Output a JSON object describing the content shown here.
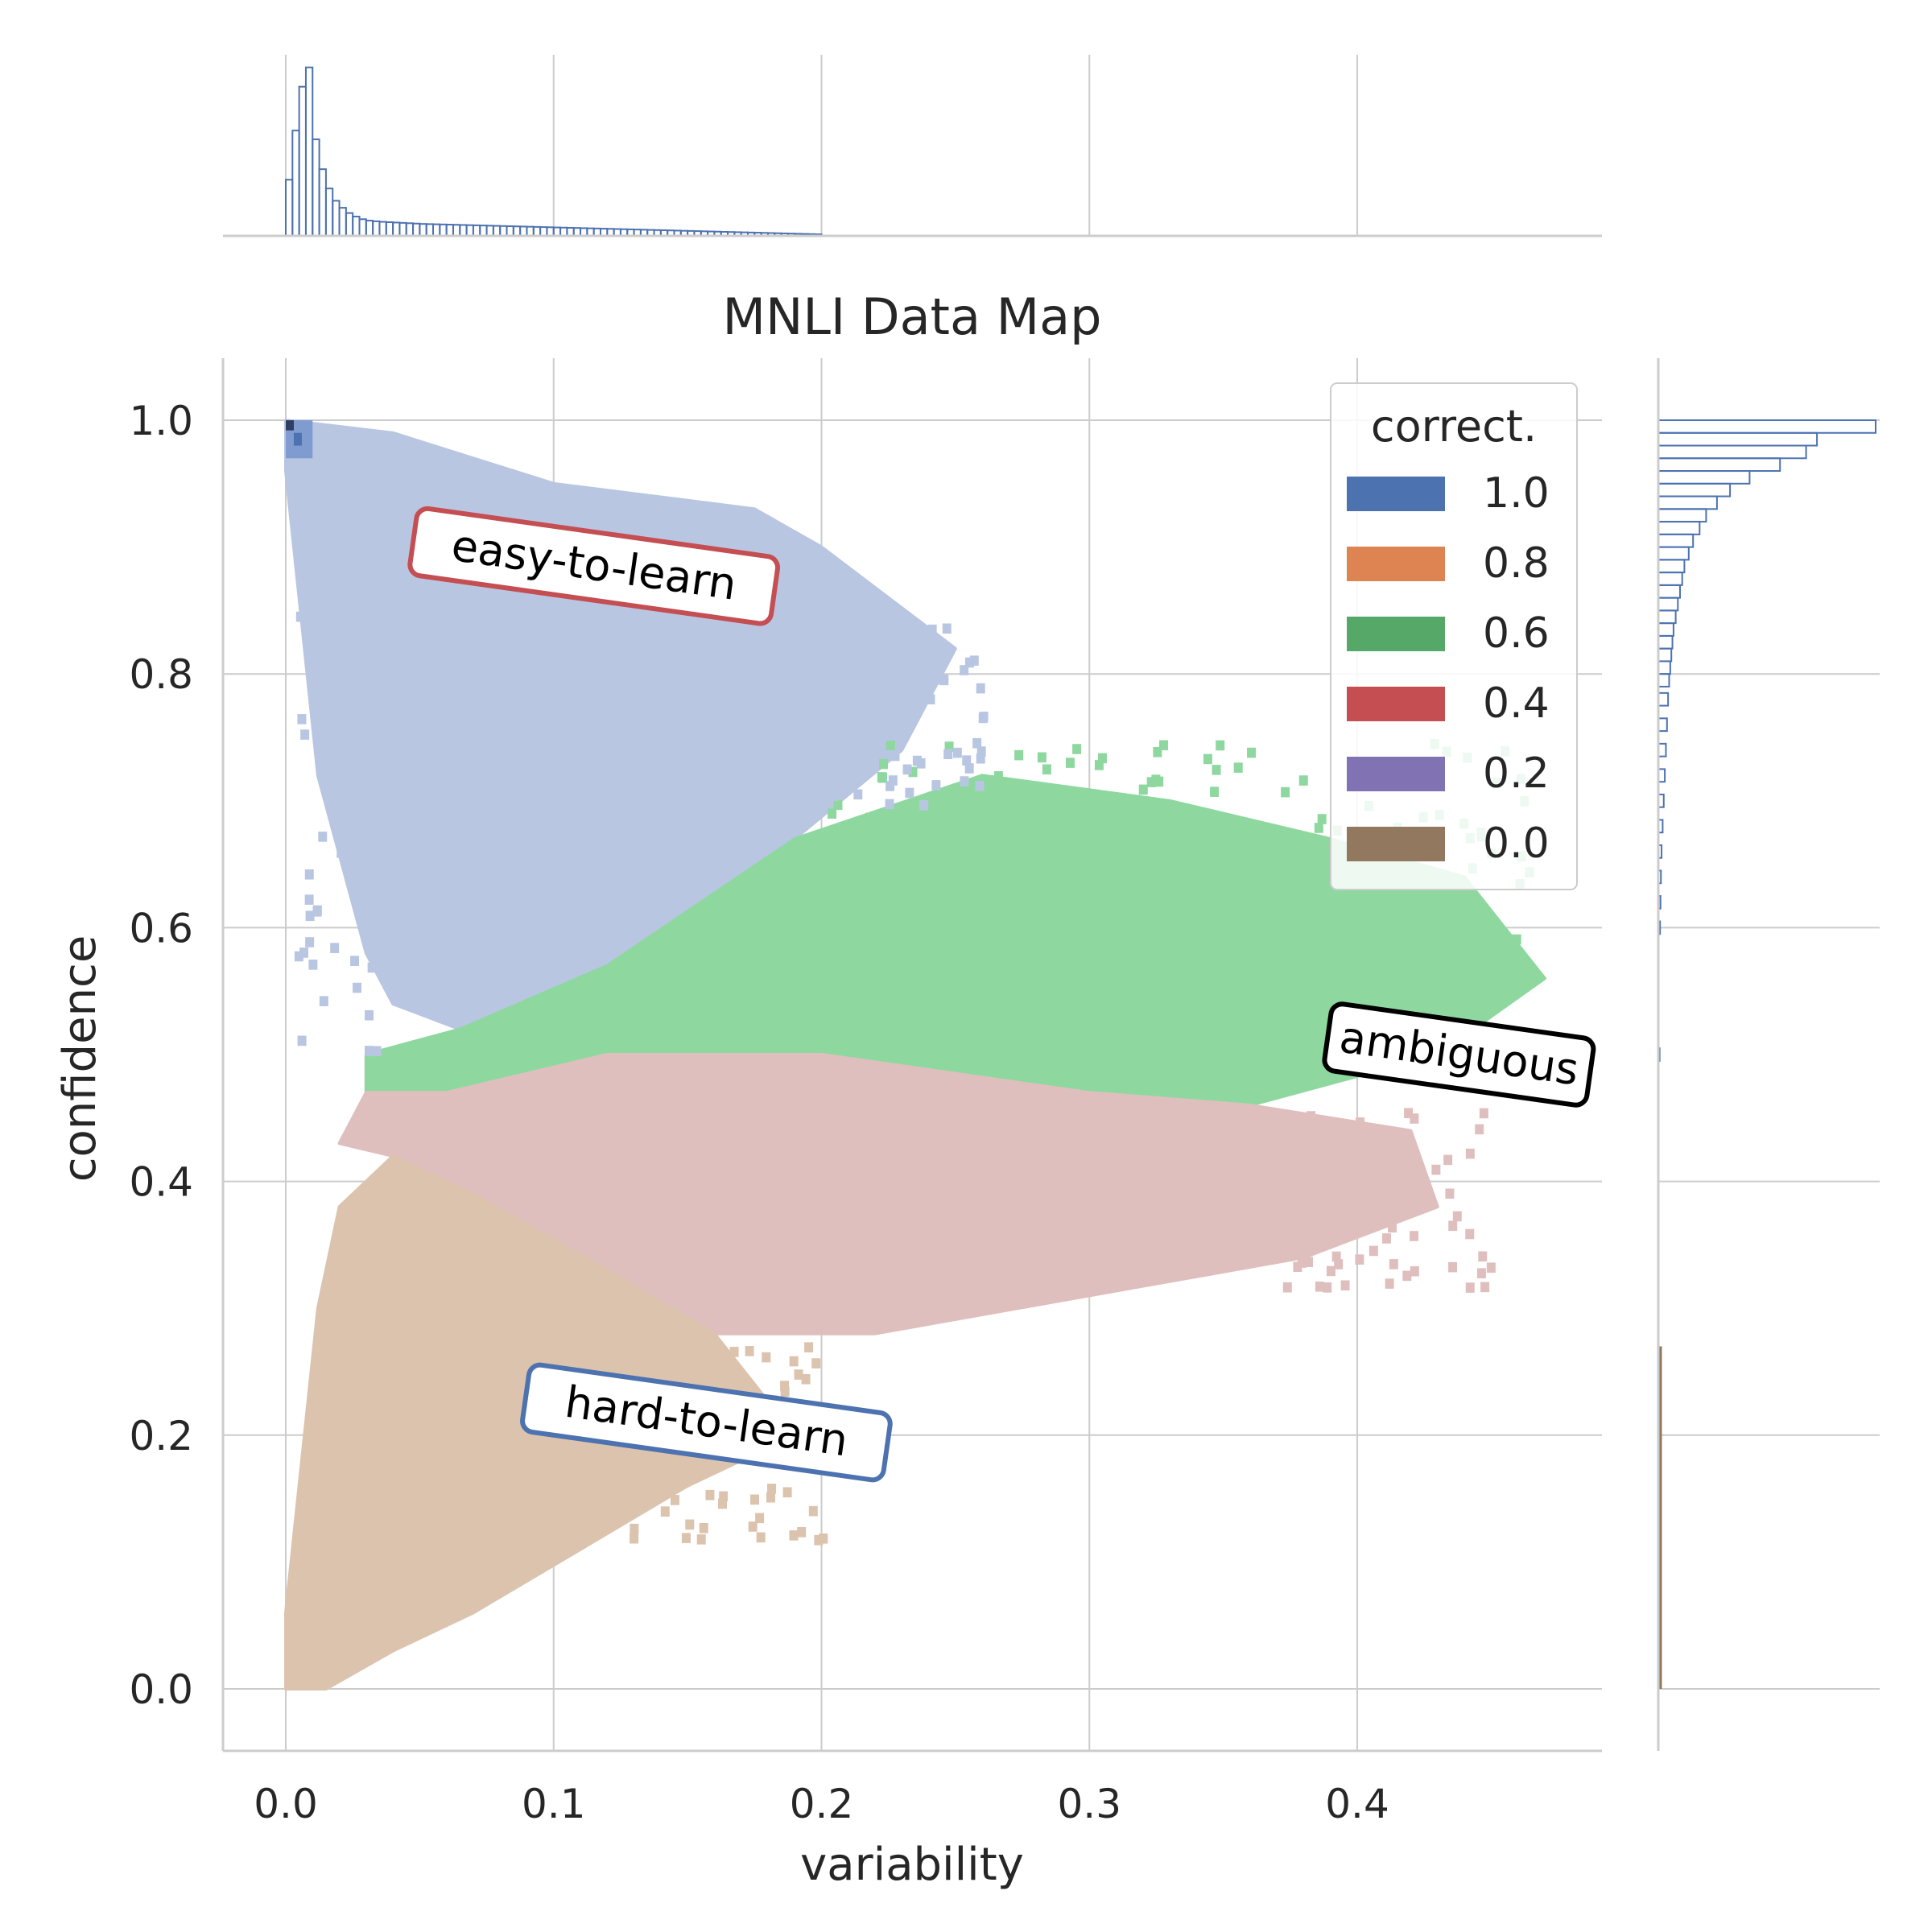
{
  "chart_data": {
    "type": "heatmap",
    "title": "MNLI Data Map",
    "xlabel": "variability",
    "ylabel": "confidence",
    "xlim": [
      -0.025,
      0.49
    ],
    "ylim": [
      -0.05,
      1.05
    ],
    "xticks": [
      0.0,
      0.1,
      0.2,
      0.3,
      0.4
    ],
    "xtick_labels": [
      "0.0",
      "0.1",
      "0.2",
      "0.3",
      "0.4"
    ],
    "yticks": [
      0.0,
      0.2,
      0.4,
      0.6,
      0.8,
      1.0
    ],
    "ytick_labels": [
      "0.0",
      "0.2",
      "0.4",
      "0.6",
      "0.8",
      "1.0"
    ],
    "grid": true,
    "legend": {
      "title": "correct.",
      "placement": "top-right",
      "entries": [
        {
          "label": "1.0",
          "color": "#4c72b0"
        },
        {
          "label": "0.8",
          "color": "#dd8452"
        },
        {
          "label": "0.6",
          "color": "#55a868"
        },
        {
          "label": "0.4",
          "color": "#c44e52"
        },
        {
          "label": "0.2",
          "color": "#8172b3"
        },
        {
          "label": "0.0",
          "color": "#937860"
        }
      ]
    },
    "regions": [
      {
        "correctness": 1.0,
        "color": "#b9c6e2",
        "polygon": [
          [
            0.0,
            1.0
          ],
          [
            0.0,
            0.96
          ],
          [
            0.012,
            0.72
          ],
          [
            0.03,
            0.58
          ],
          [
            0.04,
            0.54
          ],
          [
            0.065,
            0.52
          ],
          [
            0.12,
            0.57
          ],
          [
            0.19,
            0.67
          ],
          [
            0.23,
            0.74
          ],
          [
            0.25,
            0.82
          ],
          [
            0.2,
            0.9
          ],
          [
            0.175,
            0.93
          ],
          [
            0.1,
            0.95
          ],
          [
            0.04,
            0.99
          ]
        ]
      },
      {
        "correctness": 0.6,
        "color": "#8ed8a0",
        "polygon": [
          [
            0.03,
            0.5
          ],
          [
            0.065,
            0.52
          ],
          [
            0.12,
            0.57
          ],
          [
            0.19,
            0.67
          ],
          [
            0.26,
            0.72
          ],
          [
            0.33,
            0.7
          ],
          [
            0.39,
            0.67
          ],
          [
            0.44,
            0.64
          ],
          [
            0.47,
            0.56
          ],
          [
            0.43,
            0.5
          ],
          [
            0.36,
            0.46
          ],
          [
            0.3,
            0.47
          ],
          [
            0.2,
            0.5
          ],
          [
            0.12,
            0.5
          ],
          [
            0.06,
            0.47
          ],
          [
            0.03,
            0.46
          ]
        ]
      },
      {
        "correctness": 0.4,
        "color": "#dfbfbe",
        "polygon": [
          [
            0.03,
            0.47
          ],
          [
            0.06,
            0.47
          ],
          [
            0.12,
            0.5
          ],
          [
            0.2,
            0.5
          ],
          [
            0.3,
            0.47
          ],
          [
            0.36,
            0.46
          ],
          [
            0.42,
            0.44
          ],
          [
            0.43,
            0.38
          ],
          [
            0.38,
            0.34
          ],
          [
            0.3,
            0.31
          ],
          [
            0.22,
            0.28
          ],
          [
            0.16,
            0.28
          ],
          [
            0.12,
            0.33
          ],
          [
            0.07,
            0.39
          ],
          [
            0.04,
            0.42
          ],
          [
            0.02,
            0.43
          ]
        ]
      },
      {
        "correctness": 0.0,
        "color": "#dcc3ae",
        "polygon": [
          [
            0.0,
            0.0
          ],
          [
            0.0,
            0.06
          ],
          [
            0.012,
            0.3
          ],
          [
            0.02,
            0.38
          ],
          [
            0.04,
            0.42
          ],
          [
            0.07,
            0.39
          ],
          [
            0.12,
            0.33
          ],
          [
            0.16,
            0.28
          ],
          [
            0.19,
            0.2
          ],
          [
            0.15,
            0.16
          ],
          [
            0.11,
            0.11
          ],
          [
            0.07,
            0.06
          ],
          [
            0.04,
            0.03
          ],
          [
            0.015,
            0.0
          ]
        ]
      }
    ],
    "hotspot": {
      "x": [
        0.0,
        0.01
      ],
      "y": [
        0.97,
        1.0
      ],
      "color": "#4c72b0"
    },
    "marginal_x": {
      "color": "#4c72b0",
      "bin_width": 0.0025,
      "x_start": 0.0,
      "counts": [
        0.32,
        0.6,
        0.85,
        0.96,
        0.55,
        0.38,
        0.27,
        0.2,
        0.16,
        0.13,
        0.11,
        0.095,
        0.087,
        0.083,
        0.08,
        0.078,
        0.076,
        0.074,
        0.072,
        0.07,
        0.068,
        0.067,
        0.066,
        0.065,
        0.064,
        0.063,
        0.062,
        0.061,
        0.06,
        0.059,
        0.058,
        0.057,
        0.056,
        0.055,
        0.054,
        0.053,
        0.052,
        0.051,
        0.05,
        0.049,
        0.048,
        0.047,
        0.046,
        0.045,
        0.044,
        0.043,
        0.042,
        0.041,
        0.04,
        0.039,
        0.038,
        0.037,
        0.036,
        0.035,
        0.034,
        0.033,
        0.032,
        0.031,
        0.03,
        0.029,
        0.028,
        0.027,
        0.026,
        0.025,
        0.024,
        0.023,
        0.022,
        0.021,
        0.02,
        0.019,
        0.018,
        0.017,
        0.016,
        0.015,
        0.014,
        0.013,
        0.012,
        0.011,
        0.01,
        0.009
      ]
    },
    "marginal_y": {
      "color": "#4c72b0",
      "secondary_color": "#937860",
      "bins": [
        {
          "y": 0.995,
          "count": 1.0
        },
        {
          "y": 0.985,
          "count": 0.73
        },
        {
          "y": 0.975,
          "count": 0.68
        },
        {
          "y": 0.965,
          "count": 0.56
        },
        {
          "y": 0.955,
          "count": 0.42
        },
        {
          "y": 0.945,
          "count": 0.33
        },
        {
          "y": 0.935,
          "count": 0.27
        },
        {
          "y": 0.925,
          "count": 0.22
        },
        {
          "y": 0.915,
          "count": 0.19
        },
        {
          "y": 0.905,
          "count": 0.16
        },
        {
          "y": 0.895,
          "count": 0.14
        },
        {
          "y": 0.885,
          "count": 0.12
        },
        {
          "y": 0.875,
          "count": 0.11
        },
        {
          "y": 0.865,
          "count": 0.1
        },
        {
          "y": 0.855,
          "count": 0.09
        },
        {
          "y": 0.845,
          "count": 0.08
        },
        {
          "y": 0.835,
          "count": 0.07
        },
        {
          "y": 0.825,
          "count": 0.065
        },
        {
          "y": 0.815,
          "count": 0.06
        },
        {
          "y": 0.805,
          "count": 0.055
        },
        {
          "y": 0.795,
          "count": 0.05
        },
        {
          "y": 0.78,
          "count": 0.045
        },
        {
          "y": 0.76,
          "count": 0.04
        },
        {
          "y": 0.74,
          "count": 0.035
        },
        {
          "y": 0.72,
          "count": 0.03
        },
        {
          "y": 0.7,
          "count": 0.025
        },
        {
          "y": 0.68,
          "count": 0.02
        },
        {
          "y": 0.66,
          "count": 0.015
        },
        {
          "y": 0.64,
          "count": 0.012
        },
        {
          "y": 0.62,
          "count": 0.01
        },
        {
          "y": 0.6,
          "count": 0.008
        },
        {
          "y": 0.5,
          "count": 0.006
        }
      ]
    },
    "annotations": [
      {
        "text": "easy-to-learn",
        "x": 0.115,
        "y": 0.885,
        "rotation": 8,
        "border": "#c44e52"
      },
      {
        "text": "ambiguous",
        "x": 0.438,
        "y": 0.5,
        "rotation": 8,
        "border": "#000000"
      },
      {
        "text": "hard-to-learn",
        "x": 0.157,
        "y": 0.21,
        "rotation": 8,
        "border": "#4c72b0"
      }
    ]
  }
}
